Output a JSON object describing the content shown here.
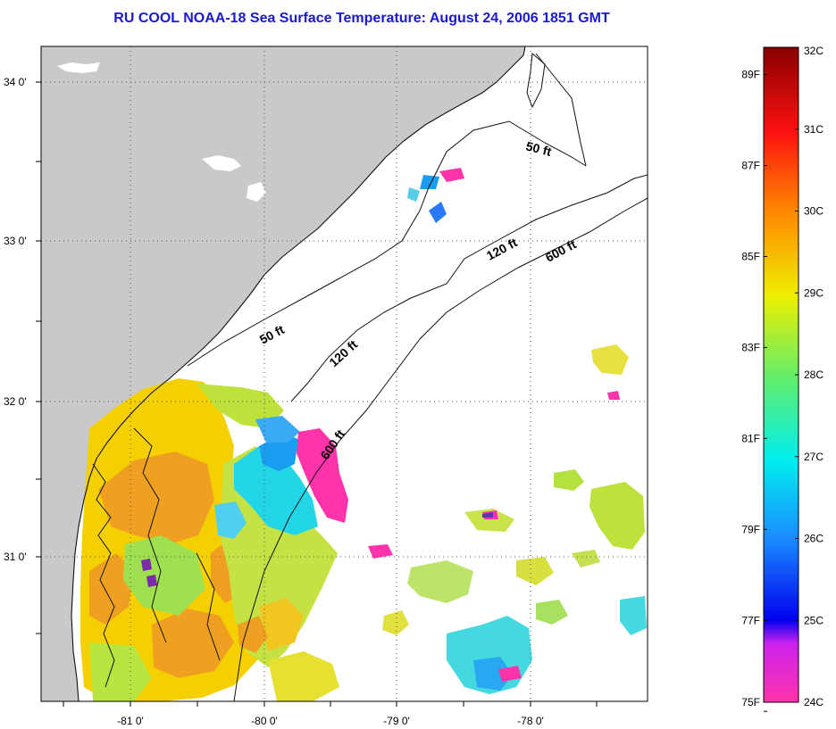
{
  "title": "RU COOL  NOAA-18  Sea Surface Temperature:  August 24, 2006 1851 GMT",
  "colors": {
    "title": "#1a1acc",
    "land": "#c9c9c9",
    "grid": "#555555",
    "coast": "#111111"
  },
  "lat_labels": [
    "34 0'",
    "33 0'",
    "32 0'",
    "31 0'"
  ],
  "lon_labels": [
    "-81 0'",
    "-80 0'",
    "-79 0'",
    "-78 0'"
  ],
  "isobaths": [
    "50 ft",
    "50 ft",
    "120 ft",
    "120 ft",
    "600 ft",
    "600 ft"
  ],
  "colorbar": {
    "fahrenheit": [
      "89F",
      "87F",
      "85F",
      "83F",
      "81F",
      "79F",
      "77F",
      "75F"
    ],
    "celsius": [
      "32C",
      "31C",
      "30C",
      "29C",
      "28C",
      "27C",
      "26C",
      "25C",
      "24C"
    ],
    "range_c": [
      24,
      32
    ]
  }
}
